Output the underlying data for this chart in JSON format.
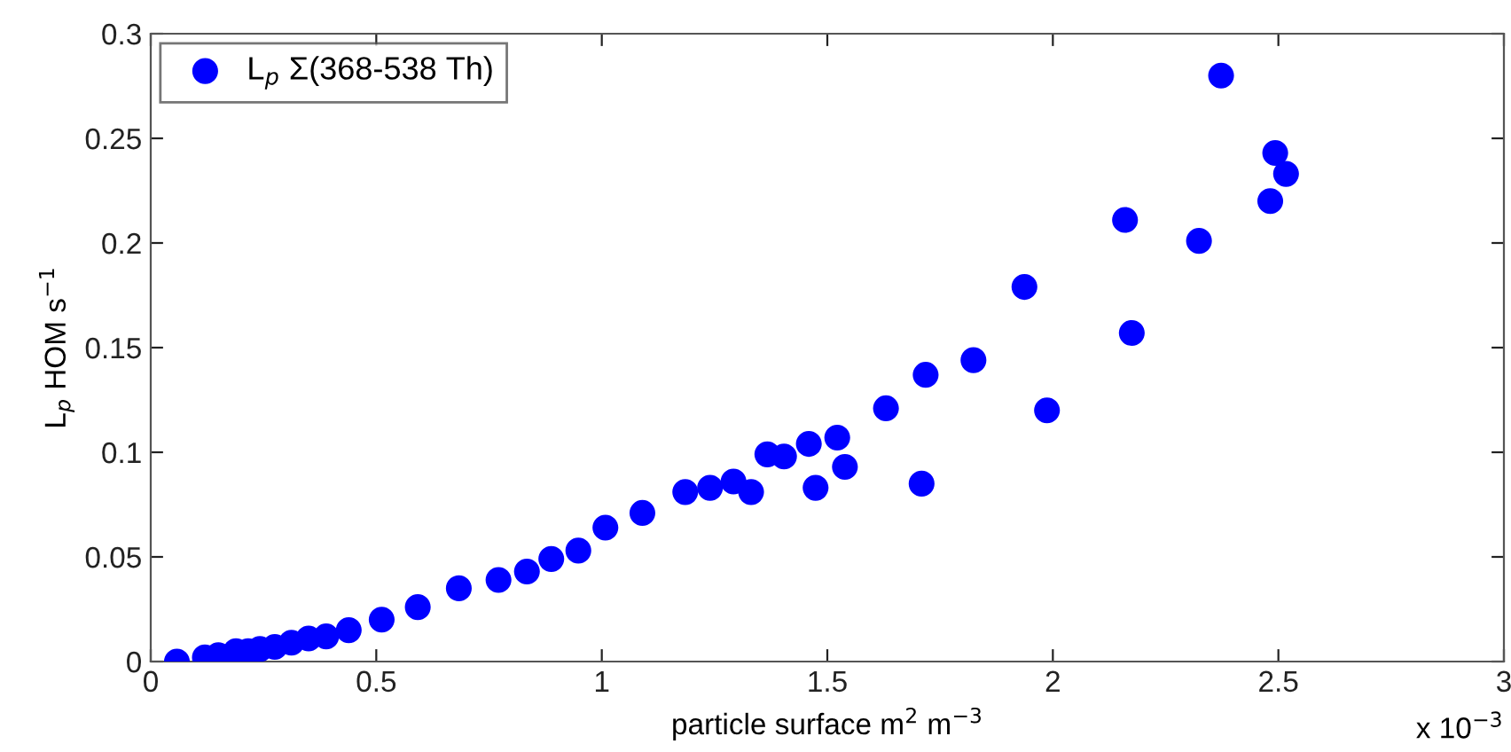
{
  "chart_data": {
    "type": "scatter",
    "xlabel": "particle surface m$^{2}$ m$^{−3}$",
    "ylabel": "L$_{p}$ HOM s$^{−1}$",
    "annotations": [
      "x 10$^{−3}$"
    ],
    "x": [
      0.058,
      0.12,
      0.15,
      0.189,
      0.216,
      0.242,
      0.275,
      0.312,
      0.35,
      0.389,
      0.439,
      0.512,
      0.592,
      0.683,
      0.771,
      0.834,
      0.888,
      0.948,
      1.008,
      1.09,
      1.185,
      1.24,
      1.292,
      1.331,
      1.367,
      1.404,
      1.459,
      1.474,
      1.522,
      1.539,
      1.63,
      1.709,
      1.718,
      1.824,
      1.937,
      1.987,
      2.16,
      2.175,
      2.324,
      2.373,
      2.482,
      2.493,
      2.517
    ],
    "series": [
      {
        "name": "L$_{p}$ Σ(368-538 Th)",
        "color": "#0000ff",
        "values": [
          0.0,
          0.002,
          0.003,
          0.005,
          0.005,
          0.006,
          0.007,
          0.009,
          0.011,
          0.012,
          0.015,
          0.02,
          0.026,
          0.035,
          0.039,
          0.043,
          0.049,
          0.053,
          0.064,
          0.071,
          0.081,
          0.083,
          0.086,
          0.081,
          0.099,
          0.098,
          0.104,
          0.083,
          0.107,
          0.093,
          0.121,
          0.085,
          0.137,
          0.144,
          0.179,
          0.12,
          0.211,
          0.157,
          0.201,
          0.28,
          0.22,
          0.243,
          0.233
        ]
      }
    ],
    "xlim": [
      0,
      3
    ],
    "ylim": [
      0,
      0.3
    ],
    "xticks": [
      0,
      0.5,
      1,
      1.5,
      2,
      2.5,
      3
    ],
    "yticks": [
      0,
      0.05,
      0.1,
      0.15,
      0.2,
      0.25,
      0.3
    ],
    "grid": false,
    "legend": "top left",
    "marker": "circle"
  }
}
